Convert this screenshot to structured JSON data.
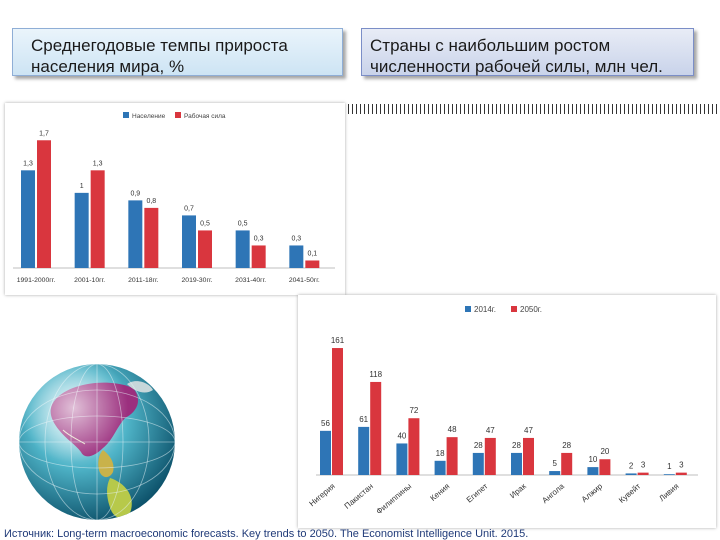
{
  "titles": {
    "left": "Среднегодовые темпы прироста населения мира, %",
    "right": "Страны с наибольшим ростом численности рабочей силы, млн чел."
  },
  "source": "Источник: Long-term macroeconomic forecasts. Key trends to 2050. The Economist Intelligence Unit. 2015.",
  "colors": {
    "blue": "#2e75b6",
    "red": "#d9363e"
  },
  "chart_data": [
    {
      "type": "bar",
      "categories": [
        "1991-2000гг.",
        "2001-10гг.",
        "2011-18гг.",
        "2019-30гг.",
        "2031-40гг.",
        "2041-50гг."
      ],
      "series": [
        {
          "name": "Население",
          "values": [
            1.3,
            1,
            0.9,
            0.7,
            0.5,
            0.3
          ],
          "labels": [
            "1,3",
            "1",
            "0,9",
            "0,7",
            "0,5",
            "0,3"
          ]
        },
        {
          "name": "Рабочая сила",
          "values": [
            1.7,
            1.3,
            0.8,
            0.5,
            0.3,
            0.1
          ],
          "labels": [
            "1,7",
            "1,3",
            "0,8",
            "0,5",
            "0,3",
            "0,1"
          ]
        }
      ],
      "ylim": [
        0,
        1.85
      ],
      "legend": "top-center",
      "grid": false
    },
    {
      "type": "bar",
      "categories": [
        "Нигерия",
        "Пакистан",
        "Филиппины",
        "Кения",
        "Египет",
        "Ирак",
        "Ангола",
        "Алжир",
        "Кувейт",
        "Ливия"
      ],
      "series": [
        {
          "name": "2014г.",
          "values": [
            56,
            61,
            40,
            18,
            28,
            28,
            5,
            10,
            2,
            1
          ]
        },
        {
          "name": "2050г.",
          "values": [
            161,
            118,
            72,
            48,
            47,
            47,
            28,
            20,
            3,
            3
          ]
        }
      ],
      "ylim": [
        0,
        175
      ],
      "legend": "top-center",
      "grid": false
    }
  ]
}
